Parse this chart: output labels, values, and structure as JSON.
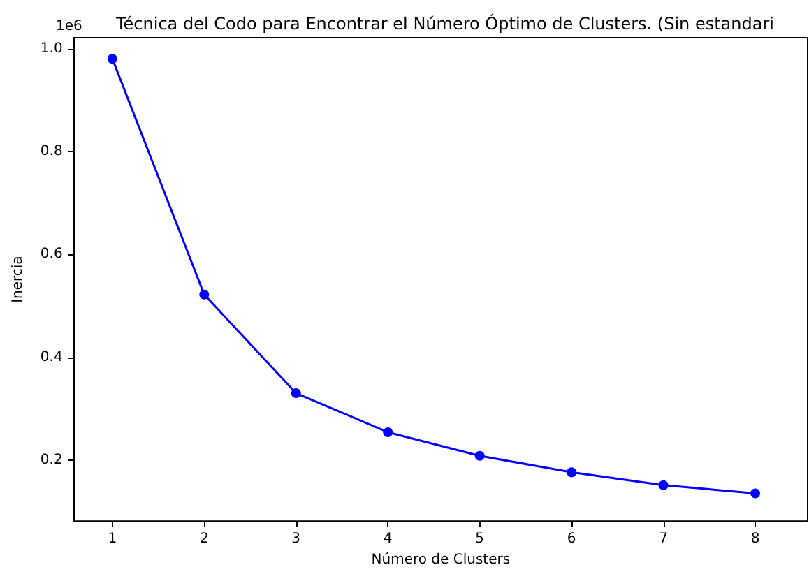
{
  "chart_data": {
    "type": "line",
    "title": "Técnica del Codo para Encontrar el Número Óptimo de Clusters. (Sin estandari",
    "xlabel": "Número de Clusters",
    "ylabel": "Inercia",
    "annotations": [
      "1e6"
    ],
    "x": [
      1,
      2,
      3,
      4,
      5,
      6,
      7,
      8
    ],
    "series": [
      {
        "color": "#0000ff",
        "values": [
          0.981,
          0.522,
          0.33,
          0.254,
          0.208,
          0.176,
          0.151,
          0.135
        ]
      }
    ],
    "xlim": [
      0.58,
      8.57
    ],
    "xticks": [
      1,
      2,
      3,
      4,
      5,
      6,
      7,
      8
    ],
    "ylim": [
      0.081,
      1.022
    ],
    "yticks": [
      0.2,
      0.4,
      0.6,
      0.8,
      {
        "value": 1.0,
        "label": "1.0"
      }
    ],
    "grid": false,
    "marker": "circle",
    "line_style": "solid"
  }
}
